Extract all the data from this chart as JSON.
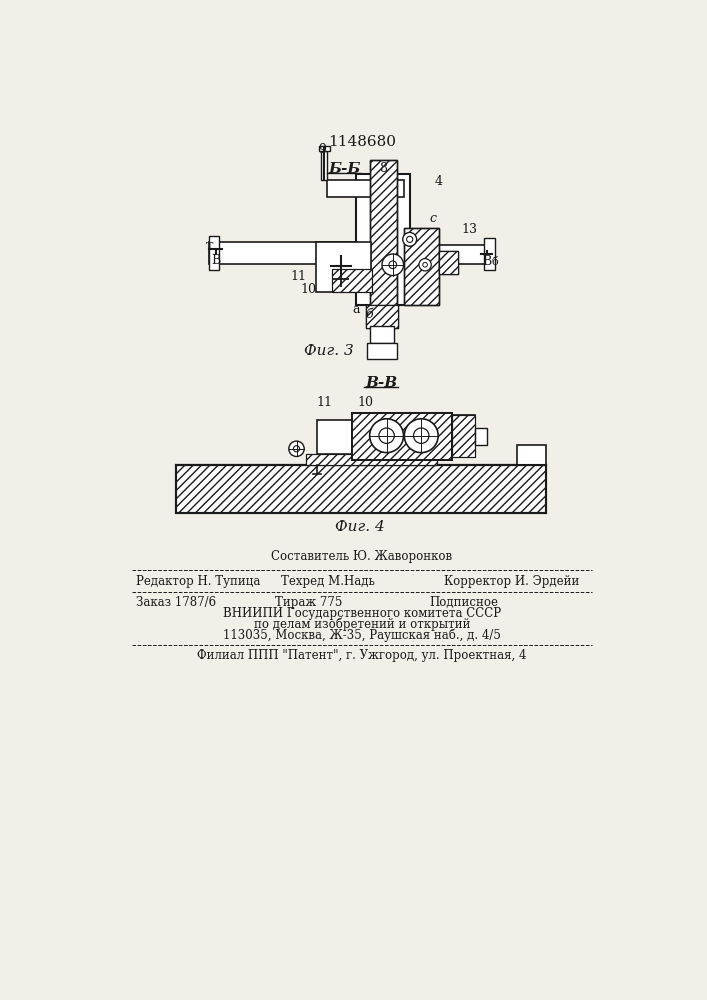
{
  "patent_number": "1148680",
  "bg_color": "#f2efe9",
  "line_color": "#1a1a1a",
  "fig3_label": "Б-Б",
  "fig4_label": "В-В",
  "caption3": "Фиг. 3",
  "caption4": "Фиг. 4",
  "footer_top": "Составитель Ю. Жаворонков",
  "footer_left1": "Редактор Н. Тупица",
  "footer_mid1": "Техред М.Надь",
  "footer_right1": "Корректор И. Эрдейи",
  "footer_left2": "Заказ 1787/6",
  "footer_mid2": "Тираж 775",
  "footer_right2": "Подписное",
  "footer_line3": "ВНИИПИ Государственного комитета СССР",
  "footer_line4": "по делам изобретений и открытий",
  "footer_line5": "113035, Москва, Ж-35, Раушская наб., д. 4/5",
  "footer_line6": "Филиал ППП \"Патент\", г. Ужгород, ул. Проектная, 4"
}
